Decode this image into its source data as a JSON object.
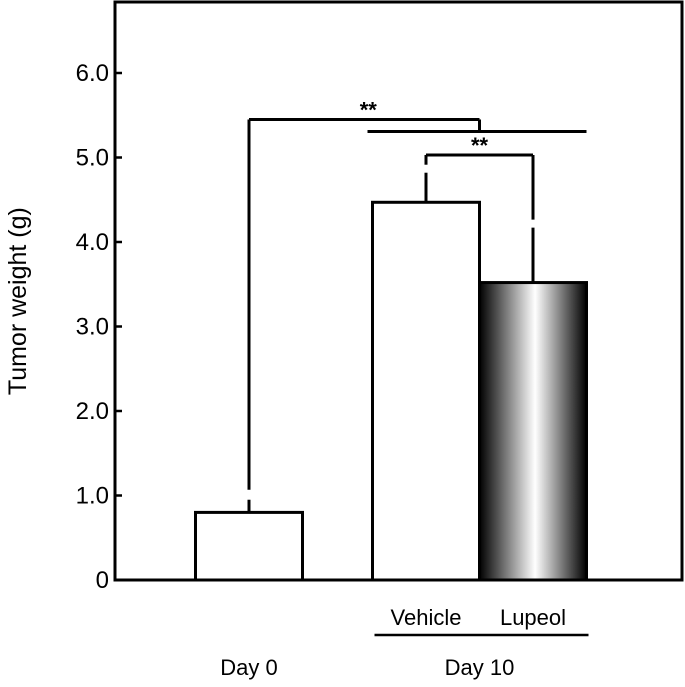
{
  "chart_data": {
    "type": "bar",
    "title": "",
    "xlabel": "",
    "ylabel": "Tumor weight (g)",
    "ylim": [
      0,
      6.6
    ],
    "yticks": [
      0,
      1.0,
      2.0,
      3.0,
      4.0,
      5.0,
      6.0
    ],
    "ytick_labels": [
      "0",
      "1.0",
      "2.0",
      "3.0",
      "4.0",
      "5.0",
      "6.0"
    ],
    "grid": false,
    "legend": "none",
    "categories": [
      "Day 0",
      "Vehicle",
      "Lupeol"
    ],
    "values": [
      0.8,
      4.47,
      3.52
    ],
    "errors": [
      0.15,
      0.35,
      0.65
    ],
    "bar_styles": [
      "white",
      "white",
      "gradient"
    ],
    "sub_labels": [
      "",
      "Vehicle",
      "Lupeol"
    ],
    "group_labels": [
      {
        "label": "Day 0",
        "members": [
          0
        ]
      },
      {
        "label": "Day 10",
        "members": [
          1,
          2
        ]
      }
    ],
    "significance": [
      {
        "text": "**",
        "from": "Day 0",
        "to": "Day 10",
        "height": 5.45
      },
      {
        "text": "**",
        "from": "Vehicle",
        "to": "Lupeol",
        "height": 5.03
      }
    ],
    "colors": {
      "bar_fill": "#ffffff",
      "gradient_dark": "#000000",
      "gradient_light": "#ffffff",
      "stroke": "#000000"
    }
  }
}
